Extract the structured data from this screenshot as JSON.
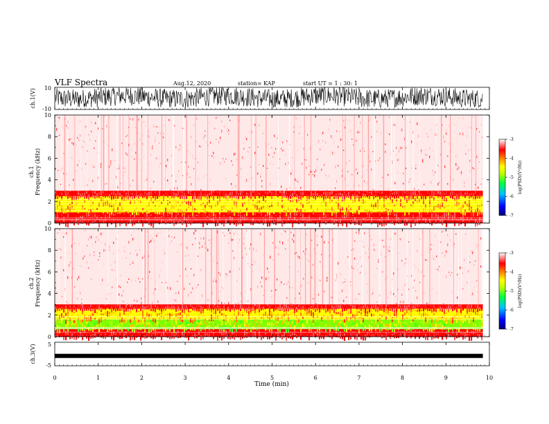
{
  "header": {
    "title": "VLF Spectra",
    "date": "Aug.12, 2020",
    "station": "station= KAP",
    "start_ut": "start UT =  1 : 30: 1"
  },
  "chart_data": [
    {
      "type": "line",
      "name": "ch1-waveform",
      "ylabel": "ch.1(V)",
      "ylim": [
        -10,
        10
      ],
      "yticks": [
        "10",
        "-10"
      ],
      "xlim": [
        0,
        10
      ],
      "note_level_V": {
        "min": -8,
        "max": 10,
        "approx_mean": 1
      }
    },
    {
      "type": "heatmap",
      "name": "ch1-spectrogram",
      "ylabel": "ch.1\nFrequency (kHz)",
      "ylim": [
        0,
        10
      ],
      "yticks": [
        "0",
        "2",
        "4",
        "6",
        "8",
        "10"
      ],
      "xlim": [
        0,
        9.85
      ],
      "bands": [
        {
          "from_khz": 0,
          "to_khz": 1.0,
          "level": "red"
        },
        {
          "from_khz": 1.0,
          "to_khz": 2.5,
          "level": "yellow-orange"
        },
        {
          "from_khz": 2.5,
          "to_khz": 3.0,
          "level": "red"
        },
        {
          "from_khz": 3.0,
          "to_khz": 10,
          "level": "sparse-red"
        }
      ],
      "colorbar": {
        "label": "log(PSD)(V²/Hz)",
        "range": [
          -7,
          -3
        ],
        "ticks": [
          "-3",
          "-4",
          "-5",
          "-6",
          "-7"
        ]
      }
    },
    {
      "type": "heatmap",
      "name": "ch2-spectrogram",
      "ylabel": "ch.2\nFrequency (kHz)",
      "ylim": [
        0,
        10
      ],
      "yticks": [
        "0",
        "2",
        "4",
        "6",
        "8",
        "10"
      ],
      "xlim": [
        0,
        9.85
      ],
      "bands": [
        {
          "from_khz": 0,
          "to_khz": 0.7,
          "level": "red"
        },
        {
          "from_khz": 0.7,
          "to_khz": 1.6,
          "level": "green-yellow"
        },
        {
          "from_khz": 1.6,
          "to_khz": 2.6,
          "level": "yellow-orange"
        },
        {
          "from_khz": 2.6,
          "to_khz": 3.0,
          "level": "red"
        },
        {
          "from_khz": 3.0,
          "to_khz": 10,
          "level": "sparse-red"
        }
      ],
      "colorbar": {
        "label": "log(PSD)(V²/Hz)",
        "range": [
          -7,
          -3
        ],
        "ticks": [
          "-3",
          "-4",
          "-5",
          "-6",
          "-7"
        ]
      }
    },
    {
      "type": "line",
      "name": "ch3-waveform",
      "ylabel": "ch.3(V)",
      "ylim": [
        -5,
        5
      ],
      "yticks": [
        "5",
        "-5"
      ],
      "xlim": [
        0,
        9.85
      ],
      "level_V": -0.8
    }
  ],
  "xaxis": {
    "label": "Time (min)",
    "range": [
      0,
      10
    ],
    "ticks": [
      "0",
      "1",
      "2",
      "3",
      "4",
      "5",
      "6",
      "7",
      "8",
      "9",
      "10"
    ]
  },
  "colors": {
    "colormap": [
      "#000080",
      "#0000ff",
      "#00c0ff",
      "#00ff40",
      "#c0ff00",
      "#ffff00",
      "#ff8000",
      "#ff0000",
      "#ffffff"
    ]
  }
}
